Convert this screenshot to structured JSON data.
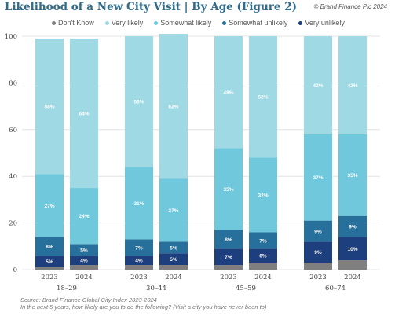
{
  "header": {
    "title": "Likelihood of a New City Visit | By Age (Figure 2)",
    "copyright": "© Brand Finance Plc 2024"
  },
  "footer": {
    "source": "Source: Brand Finance Global City Index 2023-2024",
    "question": "In the next 5 years, how likely are you to do the following? (Visit a city you have never been to)"
  },
  "chart_data": {
    "type": "bar",
    "stacked": true,
    "ylim": [
      0,
      100
    ],
    "yticks": [
      0,
      20,
      40,
      60,
      80,
      100
    ],
    "grid": true,
    "legend_position": "top",
    "groups": [
      "18-29",
      "30-44",
      "45-59",
      "60-74"
    ],
    "bars": [
      {
        "group": "18-29",
        "year": "2023",
        "values": [
          1,
          5,
          8,
          27,
          58
        ]
      },
      {
        "group": "18-29",
        "year": "2024",
        "values": [
          2,
          4,
          5,
          24,
          64
        ]
      },
      {
        "group": "30-44",
        "year": "2023",
        "values": [
          2,
          4,
          7,
          31,
          56
        ]
      },
      {
        "group": "30-44",
        "year": "2024",
        "values": [
          2,
          5,
          5,
          27,
          62
        ]
      },
      {
        "group": "45-59",
        "year": "2023",
        "values": [
          2,
          7,
          8,
          35,
          48
        ]
      },
      {
        "group": "45-59",
        "year": "2024",
        "values": [
          3,
          6,
          7,
          32,
          52
        ]
      },
      {
        "group": "60-74",
        "year": "2023",
        "values": [
          3,
          9,
          9,
          37,
          42
        ]
      },
      {
        "group": "60-74",
        "year": "2024",
        "values": [
          4,
          10,
          9,
          35,
          42
        ]
      }
    ],
    "labels": [
      [
        "",
        "5%",
        "8%",
        "27%",
        "58%"
      ],
      [
        "",
        "4%",
        "5%",
        "24%",
        "64%"
      ],
      [
        "",
        "4%",
        "7%",
        "31%",
        "56%"
      ],
      [
        "",
        "5%",
        "5%",
        "27%",
        "62%"
      ],
      [
        "",
        "7%",
        "8%",
        "35%",
        "48%"
      ],
      [
        "",
        "6%",
        "7%",
        "32%",
        "52%"
      ],
      [
        "",
        "9%",
        "9%",
        "37%",
        "42%"
      ],
      [
        "",
        "10%",
        "9%",
        "35%",
        "42%"
      ]
    ],
    "series": [
      {
        "name": "Don't Know",
        "color": "#7f7f7f"
      },
      {
        "name": "Very unlikely",
        "color": "#1d3f7e"
      },
      {
        "name": "Somewhat unlikely",
        "color": "#26709b"
      },
      {
        "name": "Somewhat likely",
        "color": "#6fc8db"
      },
      {
        "name": "Very likely",
        "color": "#9fd9e4"
      }
    ],
    "legend_order": [
      0,
      4,
      3,
      2,
      1
    ]
  }
}
